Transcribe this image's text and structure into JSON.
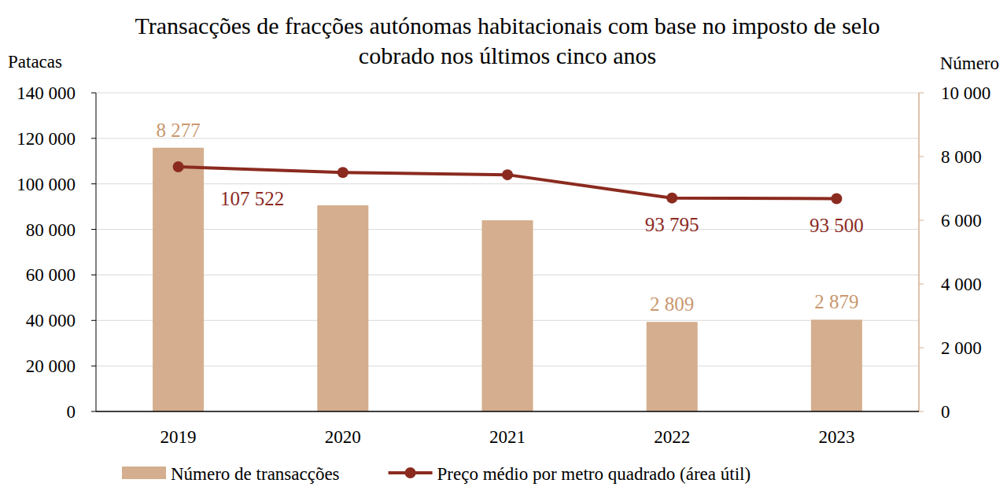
{
  "chart_data": {
    "type": "bar",
    "title": "Transacções de fracções autónomas habitacionais com base no imposto de selo cobrado nos últimos cinco anos",
    "ylabel": "Patacas",
    "y2label": "Número",
    "categories": [
      "2019",
      "2020",
      "2021",
      "2022",
      "2023"
    ],
    "series": [
      {
        "name": "Número de transacções",
        "type": "bar",
        "axis": "y2",
        "color": "#d4ae8e",
        "values": [
          8277,
          6470,
          6000,
          2809,
          2879
        ],
        "value_labels": [
          "8 277",
          null,
          null,
          "2 809",
          "2 879"
        ]
      },
      {
        "name": "Preço médio por metro quadrado (área útil)",
        "type": "line",
        "color": "#8b2a1f",
        "marker": "circle",
        "values": [
          107522,
          105000,
          104000,
          93795,
          93500
        ],
        "value_labels": [
          "107 522",
          null,
          null,
          "93 795",
          "93 500"
        ]
      }
    ],
    "ylim": [
      0,
      140000
    ],
    "yticks": [
      0,
      {
        "value": 20000,
        "label": "20 000"
      },
      {
        "value": 40000,
        "label": "40 000"
      },
      {
        "value": 60000,
        "label": "60 000"
      },
      {
        "value": 80000,
        "label": "80 000"
      },
      {
        "value": 100000,
        "label": "100 000"
      },
      {
        "value": 120000,
        "label": "120 000"
      },
      {
        "value": 140000,
        "label": "140 000"
      }
    ],
    "y2lim": [
      0,
      10000
    ],
    "y2ticks": [
      0,
      {
        "value": 2000,
        "label": "2 000"
      },
      {
        "value": 4000,
        "label": "4 000"
      },
      {
        "value": 6000,
        "label": "6 000"
      },
      {
        "value": 8000,
        "label": "8 000"
      },
      {
        "value": 10000,
        "label": "10 000"
      }
    ],
    "grid": true,
    "legend": "bottom",
    "data_labels": true
  }
}
